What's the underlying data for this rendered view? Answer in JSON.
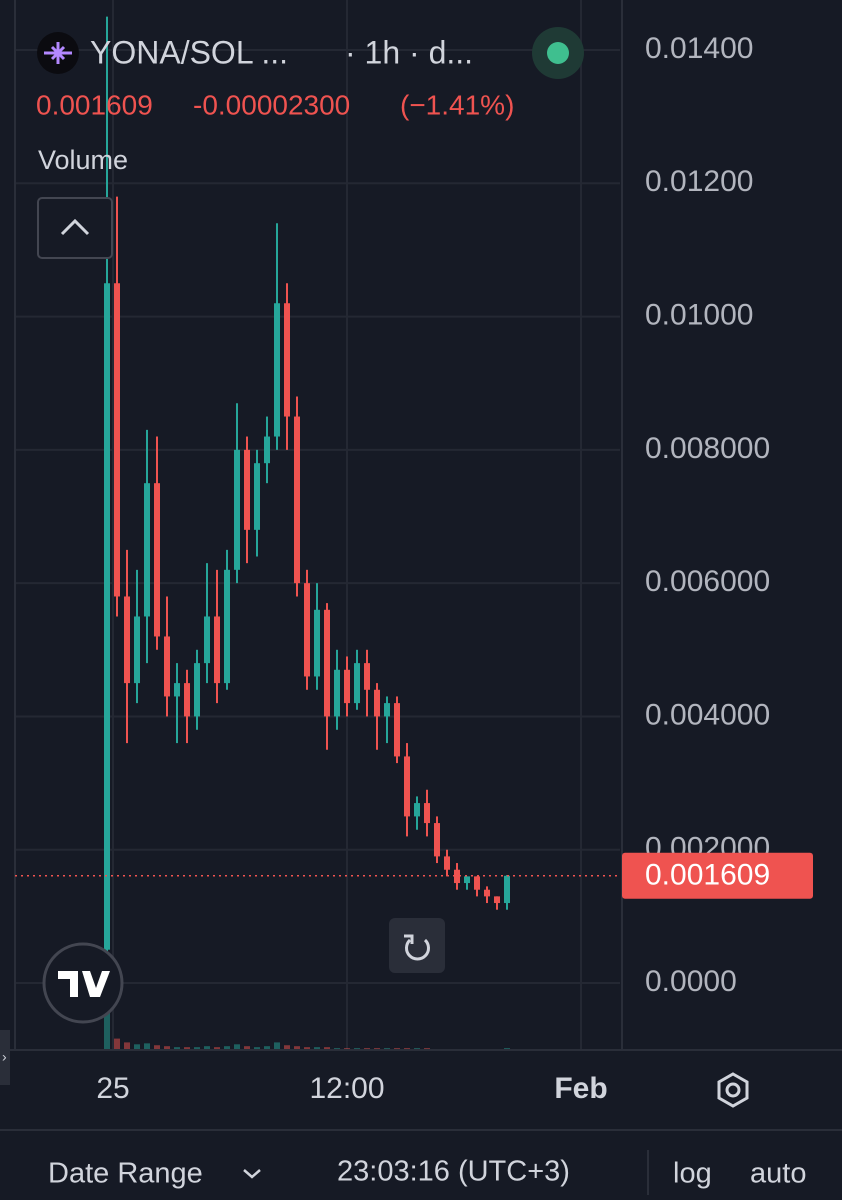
{
  "chart_data": {
    "type": "candlestick",
    "title": "YONA/SOL ...",
    "subtitle": "· 1h · d...",
    "last_price": 0.001609,
    "change": "-0.00002300",
    "change_percent": "(−1.41%)",
    "volume_label": "Volume",
    "open": [
      0.0005,
      0.0105,
      0.0058,
      0.0045,
      0.0055,
      0.0075,
      0.0052,
      0.0043,
      0.0045,
      0.004,
      0.0048,
      0.0055,
      0.0045,
      0.0062,
      0.008,
      0.0068,
      0.0078,
      0.0082,
      0.0102,
      0.0085,
      0.006,
      0.0046,
      0.0056,
      0.004,
      0.0047,
      0.0042,
      0.0048,
      0.0044,
      0.004,
      0.0042,
      0.0034,
      0.0025,
      0.0027,
      0.0024,
      0.0019,
      0.0017,
      0.0015,
      0.0016,
      0.0014,
      0.0013,
      0.0012
    ],
    "high": [
      0.0145,
      0.0118,
      0.0065,
      0.0062,
      0.0083,
      0.0082,
      0.0058,
      0.0048,
      0.0047,
      0.005,
      0.0063,
      0.0062,
      0.0065,
      0.0087,
      0.0082,
      0.008,
      0.0085,
      0.0114,
      0.0105,
      0.0088,
      0.0062,
      0.006,
      0.0057,
      0.005,
      0.0049,
      0.005,
      0.005,
      0.0045,
      0.0043,
      0.0043,
      0.0036,
      0.0028,
      0.0029,
      0.0025,
      0.002,
      0.0018,
      0.0016,
      0.0016,
      0.00145,
      0.0013,
      0.00162
    ],
    "low": [
      0.0003,
      0.0055,
      0.0036,
      0.0042,
      0.0048,
      0.005,
      0.004,
      0.0036,
      0.0036,
      0.0038,
      0.0045,
      0.0042,
      0.0044,
      0.006,
      0.0063,
      0.0064,
      0.0075,
      0.008,
      0.008,
      0.0058,
      0.0044,
      0.0044,
      0.0035,
      0.0038,
      0.004,
      0.0041,
      0.004,
      0.0035,
      0.0036,
      0.0033,
      0.0022,
      0.0023,
      0.0022,
      0.0018,
      0.0016,
      0.0014,
      0.0014,
      0.0013,
      0.0012,
      0.0011,
      0.0011
    ],
    "close": [
      0.0105,
      0.0058,
      0.0045,
      0.0055,
      0.0075,
      0.0052,
      0.0043,
      0.0045,
      0.004,
      0.0048,
      0.0055,
      0.0045,
      0.0062,
      0.008,
      0.0068,
      0.0078,
      0.0082,
      0.0102,
      0.0085,
      0.006,
      0.0046,
      0.0056,
      0.004,
      0.0047,
      0.0042,
      0.0048,
      0.0044,
      0.004,
      0.0042,
      0.0034,
      0.0025,
      0.0027,
      0.0024,
      0.0019,
      0.0017,
      0.0015,
      0.0016,
      0.0014,
      0.0013,
      0.0012,
      0.001609
    ],
    "volume": [
      40,
      12,
      8,
      6,
      7,
      5,
      4,
      3,
      3,
      3,
      4,
      3,
      4,
      6,
      4,
      3,
      4,
      8,
      5,
      4,
      3,
      3,
      3,
      2,
      2,
      2,
      2,
      2,
      2,
      2,
      2,
      2,
      2,
      1,
      1,
      1,
      1,
      1,
      1,
      1,
      2
    ],
    "up_color": "#26a69a",
    "down_color": "#ef5350",
    "ylim": [
      -0.001005,
      0.014525
    ],
    "yticks": [
      {
        "value": 0,
        "label": "0.0000"
      },
      {
        "value": 0.002,
        "label": "0.002000"
      },
      {
        "value": 0.004,
        "label": "0.004000"
      },
      {
        "value": 0.006,
        "label": "0.006000"
      },
      {
        "value": 0.008,
        "label": "0.008000"
      },
      {
        "value": 0.01,
        "label": "0.01000"
      },
      {
        "value": 0.012,
        "label": "0.01200"
      },
      {
        "value": 0.014,
        "label": "0.01400"
      }
    ],
    "xlim": [
      -9.2,
      51.3
    ],
    "xticks": [
      {
        "value": 0.6,
        "label": "25"
      },
      {
        "value": 24,
        "label": "12:00"
      },
      {
        "value": 47.4,
        "label": "Feb"
      }
    ],
    "grid": true
  },
  "footer": {
    "date_range": "Date Range",
    "time": "23:03:16 (UTC+3)",
    "log": "log",
    "auto": "auto"
  }
}
